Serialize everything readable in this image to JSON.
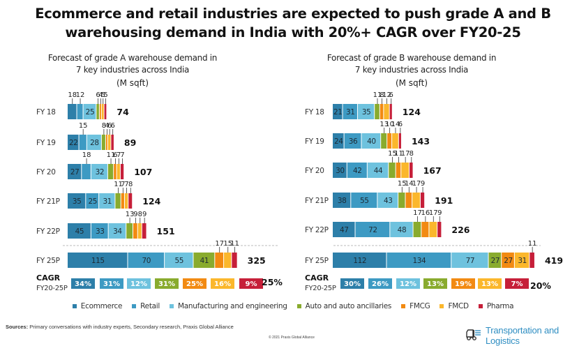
{
  "title_line1": "Ecommerce and retail industries are expected to push grade A and B",
  "title_line2": "warehousing demand in India with 20%+ CAGR over FY20-25",
  "colors": {
    "Ecommerce": "#2d7fa9",
    "Retail": "#3d9ac3",
    "Manufacturing and engineering": "#6ec2de",
    "Auto and auto ancillaries": "#89ab2e",
    "FMCG": "#f28a12",
    "FMCD": "#fbb72c",
    "Pharma": "#c61f39"
  },
  "legend": [
    "Ecommerce",
    "Retail",
    "Manufacturing and engineering",
    "Auto and auto ancillaries",
    "FMCG",
    "FMCD",
    "Pharma"
  ],
  "chart_data": [
    {
      "type": "bar",
      "orientation": "horizontal-stacked",
      "title_line1": "Forecast of grade A warehouse demand in",
      "title_line2": "7 key industries across India",
      "unit": "(M sqft)",
      "categories": [
        "FY 18",
        "FY 19",
        "FY 20",
        "FY 21P",
        "FY 22P",
        "FY 25P"
      ],
      "series": [
        {
          "name": "Ecommerce",
          "values": [
            18,
            22,
            27,
            35,
            45,
            115
          ]
        },
        {
          "name": "Retail",
          "values": [
            12,
            15,
            18,
            25,
            33,
            70
          ]
        },
        {
          "name": "Manufacturing and engineering",
          "values": [
            25,
            28,
            32,
            31,
            34,
            55
          ]
        },
        {
          "name": "Auto and auto ancillaries",
          "values": [
            6,
            8,
            11,
            11,
            13,
            41
          ]
        },
        {
          "name": "FMCG",
          "values": [
            4,
            4,
            6,
            7,
            9,
            17
          ]
        },
        {
          "name": "FMCD",
          "values": [
            5,
            6,
            7,
            7,
            8,
            15
          ]
        },
        {
          "name": "Pharma",
          "values": [
            5,
            6,
            7,
            8,
            9,
            11
          ]
        }
      ],
      "totals": [
        "74",
        "89",
        "107",
        "124",
        "151",
        "325"
      ],
      "cagr_label": "CAGR",
      "cagr_sublabel": "FY20-25P",
      "cagr": [
        "34%",
        "31%",
        "12%",
        "31%",
        "25%",
        "16%",
        "9%"
      ],
      "cagr_total": "25%"
    },
    {
      "type": "bar",
      "orientation": "horizontal-stacked",
      "title_line1": "Forecast of grade B warehouse demand in",
      "title_line2": "7 key industries across India",
      "unit": "(M sqft)",
      "categories": [
        "FY 18",
        "FY 19",
        "FY 20",
        "FY 21P",
        "FY 22P",
        "FY 25P"
      ],
      "series": [
        {
          "name": "Ecommerce",
          "values": [
            21,
            24,
            30,
            38,
            47,
            112
          ]
        },
        {
          "name": "Retail",
          "values": [
            31,
            36,
            42,
            55,
            72,
            134
          ]
        },
        {
          "name": "Manufacturing and engineering",
          "values": [
            35,
            40,
            44,
            43,
            48,
            77
          ]
        },
        {
          "name": "Auto and auto ancillaries",
          "values": [
            11,
            13,
            15,
            15,
            17,
            27
          ]
        },
        {
          "name": "FMCG",
          "values": [
            8,
            10,
            11,
            14,
            16,
            27
          ]
        },
        {
          "name": "FMCD",
          "values": [
            12,
            14,
            17,
            17,
            17,
            31
          ]
        },
        {
          "name": "Pharma",
          "values": [
            6,
            6,
            8,
            9,
            9,
            11
          ]
        }
      ],
      "totals": [
        "124",
        "143",
        "167",
        "191",
        "226",
        "419"
      ],
      "cagr_label": "CAGR",
      "cagr_sublabel": "FY20-25P",
      "cagr": [
        "30%",
        "26%",
        "12%",
        "13%",
        "19%",
        "13%",
        "7%"
      ],
      "cagr_total": "20%"
    }
  ],
  "footer": {
    "sources_label": "Sources:",
    "sources_text": " Primary conversations with industry experts, Secondary research, Praxis Global Alliance",
    "copyright": "© 2021 Praxis Global Alliance",
    "brand": "Transportation and Logistics",
    "brand_icon": "truck-icon"
  }
}
